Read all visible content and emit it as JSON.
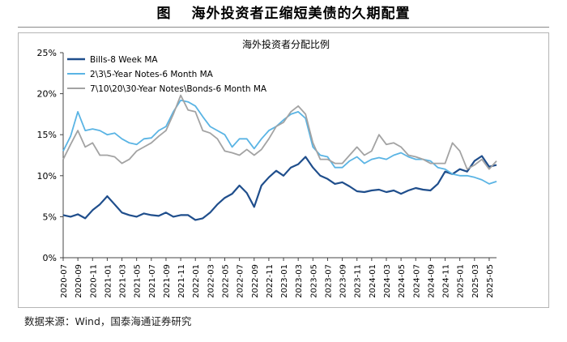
{
  "figure_title": "图　 海外投资者正缩短美债的久期配置",
  "source_note": "数据来源：Wind，国泰海通证券研究",
  "chart_data": {
    "type": "line",
    "title": "海外投资者分配比例",
    "xlabel": "",
    "ylabel": "",
    "ylim": [
      0,
      25
    ],
    "y_ticks": [
      0,
      5,
      10,
      15,
      20,
      25
    ],
    "y_tick_labels": [
      "0%",
      "5%",
      "10%",
      "15%",
      "20%",
      "25%"
    ],
    "x_tick_labels": [
      "2020-07",
      "2020-09",
      "2020-11",
      "2021-01",
      "2021-03",
      "2021-05",
      "2021-07",
      "2021-09",
      "2021-11",
      "2022-01",
      "2022-03",
      "2022-05",
      "2022-07",
      "2022-09",
      "2022-11",
      "2023-01",
      "2023-03",
      "2023-05",
      "2023-07",
      "2023-09",
      "2023-11",
      "2024-01",
      "2024-03",
      "2024-05",
      "2024-07",
      "2024-09",
      "2024-11",
      "2025-01",
      "2025-03",
      "2025-05"
    ],
    "grid": false,
    "legend_position": "top-left",
    "series": [
      {
        "name": "Bills-8 Week MA",
        "color": "#1f4e8c",
        "x": [
          "2020-07",
          "2020-08",
          "2020-09",
          "2020-10",
          "2020-11",
          "2020-12",
          "2021-01",
          "2021-02",
          "2021-03",
          "2021-04",
          "2021-05",
          "2021-06",
          "2021-07",
          "2021-08",
          "2021-09",
          "2021-10",
          "2021-11",
          "2021-12",
          "2022-01",
          "2022-02",
          "2022-03",
          "2022-04",
          "2022-05",
          "2022-06",
          "2022-07",
          "2022-08",
          "2022-09",
          "2022-10",
          "2022-11",
          "2022-12",
          "2023-01",
          "2023-02",
          "2023-03",
          "2023-04",
          "2023-05",
          "2023-06",
          "2023-07",
          "2023-08",
          "2023-09",
          "2023-10",
          "2023-11",
          "2023-12",
          "2024-01",
          "2024-02",
          "2024-03",
          "2024-04",
          "2024-05",
          "2024-06",
          "2024-07",
          "2024-08",
          "2024-09",
          "2024-10",
          "2024-11",
          "2024-12",
          "2025-01",
          "2025-02",
          "2025-03",
          "2025-04",
          "2025-05",
          "2025-06"
        ],
        "values": [
          5.2,
          5.0,
          5.3,
          4.8,
          5.8,
          6.5,
          7.5,
          6.5,
          5.5,
          5.2,
          5.0,
          5.4,
          5.2,
          5.1,
          5.5,
          5.0,
          5.2,
          5.2,
          4.6,
          4.8,
          5.5,
          6.5,
          7.3,
          7.8,
          8.8,
          7.9,
          6.2,
          8.8,
          9.8,
          10.6,
          10.0,
          11.0,
          11.4,
          12.3,
          11.0,
          10.0,
          9.6,
          9.0,
          9.2,
          8.7,
          8.1,
          8.0,
          8.2,
          8.3,
          8.0,
          8.2,
          7.8,
          8.2,
          8.5,
          8.3,
          8.2,
          9.0,
          10.5,
          10.2,
          10.8,
          10.5,
          11.8,
          12.4,
          11.1,
          11.3
        ]
      },
      {
        "name": "2\\3\\5-Year Notes-6 Month MA",
        "color": "#5ab4e4",
        "x": [
          "2020-07",
          "2020-08",
          "2020-09",
          "2020-10",
          "2020-11",
          "2020-12",
          "2021-01",
          "2021-02",
          "2021-03",
          "2021-04",
          "2021-05",
          "2021-06",
          "2021-07",
          "2021-08",
          "2021-09",
          "2021-10",
          "2021-11",
          "2021-12",
          "2022-01",
          "2022-02",
          "2022-03",
          "2022-04",
          "2022-05",
          "2022-06",
          "2022-07",
          "2022-08",
          "2022-09",
          "2022-10",
          "2022-11",
          "2022-12",
          "2023-01",
          "2023-02",
          "2023-03",
          "2023-04",
          "2023-05",
          "2023-06",
          "2023-07",
          "2023-08",
          "2023-09",
          "2023-10",
          "2023-11",
          "2023-12",
          "2024-01",
          "2024-02",
          "2024-03",
          "2024-04",
          "2024-05",
          "2024-06",
          "2024-07",
          "2024-08",
          "2024-09",
          "2024-10",
          "2024-11",
          "2024-12",
          "2025-01",
          "2025-02",
          "2025-03",
          "2025-04",
          "2025-05",
          "2025-06"
        ],
        "values": [
          13.0,
          14.8,
          17.8,
          15.5,
          15.7,
          15.5,
          15.0,
          15.2,
          14.5,
          14.0,
          13.8,
          14.5,
          14.6,
          15.5,
          16.0,
          17.8,
          19.2,
          19.0,
          18.5,
          17.2,
          16.0,
          15.5,
          15.0,
          13.5,
          14.5,
          14.5,
          13.3,
          14.5,
          15.5,
          16.0,
          16.8,
          17.5,
          17.8,
          17.0,
          13.5,
          12.5,
          12.3,
          11.0,
          11.0,
          11.8,
          12.3,
          11.5,
          12.0,
          12.2,
          12.0,
          12.5,
          12.8,
          12.3,
          12.0,
          12.0,
          11.8,
          11.0,
          10.8,
          10.2,
          10.0,
          10.0,
          9.8,
          9.5,
          9.0,
          9.3
        ]
      },
      {
        "name": "7\\10\\20\\30-Year Notes\\Bonds-6 Month MA",
        "color": "#a3a3a3",
        "x": [
          "2020-07",
          "2020-08",
          "2020-09",
          "2020-10",
          "2020-11",
          "2020-12",
          "2021-01",
          "2021-02",
          "2021-03",
          "2021-04",
          "2021-05",
          "2021-06",
          "2021-07",
          "2021-08",
          "2021-09",
          "2021-10",
          "2021-11",
          "2021-12",
          "2022-01",
          "2022-02",
          "2022-03",
          "2022-04",
          "2022-05",
          "2022-06",
          "2022-07",
          "2022-08",
          "2022-09",
          "2022-10",
          "2022-11",
          "2022-12",
          "2023-01",
          "2023-02",
          "2023-03",
          "2023-04",
          "2023-05",
          "2023-06",
          "2023-07",
          "2023-08",
          "2023-09",
          "2023-10",
          "2023-11",
          "2023-12",
          "2024-01",
          "2024-02",
          "2024-03",
          "2024-04",
          "2024-05",
          "2024-06",
          "2024-07",
          "2024-08",
          "2024-09",
          "2024-10",
          "2024-11",
          "2024-12",
          "2025-01",
          "2025-02",
          "2025-03",
          "2025-04",
          "2025-05",
          "2025-06"
        ],
        "values": [
          12.0,
          13.8,
          15.5,
          13.5,
          14.0,
          12.5,
          12.5,
          12.3,
          11.5,
          12.0,
          13.0,
          13.5,
          14.0,
          14.8,
          15.5,
          17.5,
          19.8,
          18.0,
          17.8,
          15.5,
          15.2,
          14.5,
          13.0,
          12.8,
          12.5,
          13.2,
          12.5,
          13.2,
          14.5,
          16.0,
          16.5,
          17.8,
          18.5,
          17.5,
          14.0,
          12.0,
          12.0,
          11.5,
          11.5,
          12.5,
          13.5,
          12.5,
          13.0,
          15.0,
          13.8,
          14.0,
          13.5,
          12.5,
          12.3,
          12.0,
          11.5,
          11.5,
          11.5,
          14.0,
          13.0,
          10.8,
          11.3,
          12.0,
          10.8,
          11.8
        ]
      }
    ]
  }
}
